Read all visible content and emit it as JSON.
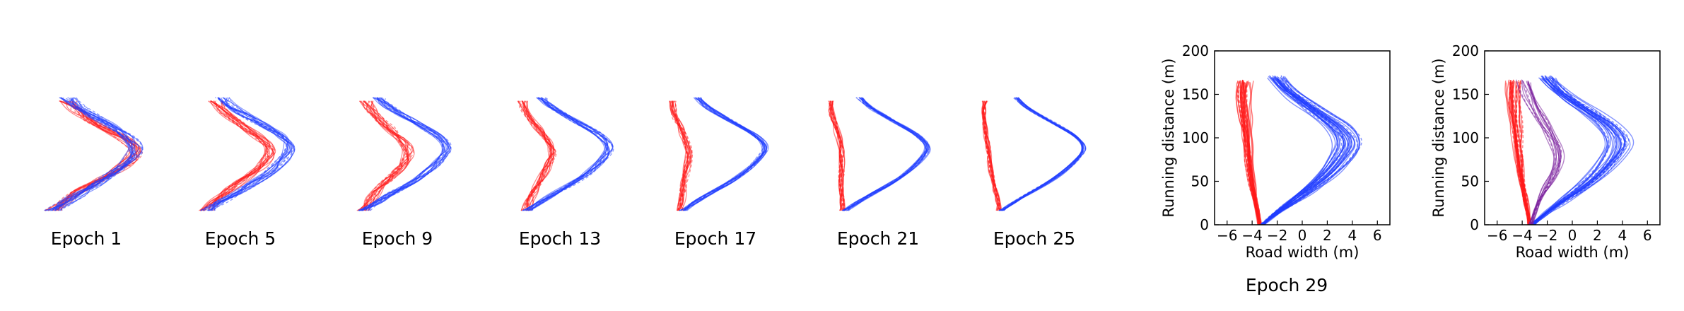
{
  "figure": {
    "captions": [
      "Epoch 1",
      "Epoch 5",
      "Epoch 9",
      "Epoch 13",
      "Epoch 17",
      "Epoch 21",
      "Epoch 25",
      "Epoch 29"
    ]
  },
  "chart_data": [
    {
      "type": "line",
      "panel": "left",
      "xlabel": "Road width (m)",
      "ylabel": "Running distance (m)",
      "xlim": [
        -7,
        7
      ],
      "ylim": [
        0,
        200
      ],
      "xticks": [
        -6,
        -4,
        -2,
        0,
        2,
        4,
        6
      ],
      "yticks": [
        0,
        50,
        100,
        150,
        200
      ],
      "xtick_labels": [
        "−6",
        "−4",
        "−2",
        "0",
        "2",
        "4",
        "6"
      ],
      "ytick_labels": [
        "0",
        "50",
        "100",
        "150",
        "200"
      ],
      "series": [
        {
          "color": "#ff1a1a",
          "count": 35,
          "x": [
            -3.4,
            -3.55,
            -3.75,
            -3.95,
            -4.1,
            -4.2,
            -4.3,
            -4.4,
            -4.5,
            -4.6,
            -4.7,
            -4.6
          ],
          "y": [
            0,
            15,
            30,
            45,
            60,
            75,
            90,
            105,
            120,
            135,
            150,
            165
          ]
        },
        {
          "color": "#1f3dff",
          "count": 35,
          "x": [
            -3.2,
            -2.2,
            -1.0,
            0.5,
            2.0,
            3.2,
            3.8,
            3.0,
            1.5,
            0.0,
            -1.3,
            -2.0
          ],
          "y": [
            0,
            12,
            25,
            40,
            58,
            78,
            95,
            112,
            128,
            143,
            157,
            170
          ]
        }
      ]
    },
    {
      "type": "line",
      "panel": "right",
      "xlabel": "Road width (m)",
      "ylabel": "Running distance (m)",
      "xlim": [
        -7,
        7
      ],
      "ylim": [
        0,
        200
      ],
      "xticks": [
        -6,
        -4,
        -2,
        0,
        2,
        4,
        6
      ],
      "yticks": [
        0,
        50,
        100,
        150,
        200
      ],
      "xtick_labels": [
        "−6",
        "−4",
        "−2",
        "0",
        "2",
        "4",
        "6"
      ],
      "ytick_labels": [
        "0",
        "50",
        "100",
        "150",
        "200"
      ],
      "series": [
        {
          "color": "#ff1a1a",
          "count": 30,
          "x": [
            -3.4,
            -3.55,
            -3.75,
            -3.95,
            -4.1,
            -4.2,
            -4.3,
            -4.4,
            -4.5,
            -4.6,
            -4.7,
            -4.6
          ],
          "y": [
            0,
            15,
            30,
            45,
            60,
            75,
            90,
            105,
            120,
            135,
            150,
            165
          ]
        },
        {
          "color": "#1f3dff",
          "count": 30,
          "x": [
            -3.2,
            -2.2,
            -1.0,
            0.5,
            2.0,
            3.2,
            3.8,
            3.0,
            1.5,
            0.0,
            -1.3,
            -2.0
          ],
          "y": [
            0,
            12,
            25,
            40,
            58,
            78,
            95,
            112,
            128,
            143,
            157,
            170
          ]
        },
        {
          "color": "#7a1f9c",
          "count": 14,
          "x": [
            -3.3,
            -3.0,
            -2.6,
            -2.0,
            -1.4,
            -1.0,
            -1.2,
            -1.8,
            -2.4,
            -3.0,
            -3.5,
            -3.8
          ],
          "y": [
            0,
            15,
            30,
            45,
            60,
            75,
            90,
            105,
            120,
            135,
            150,
            165
          ]
        }
      ]
    }
  ]
}
